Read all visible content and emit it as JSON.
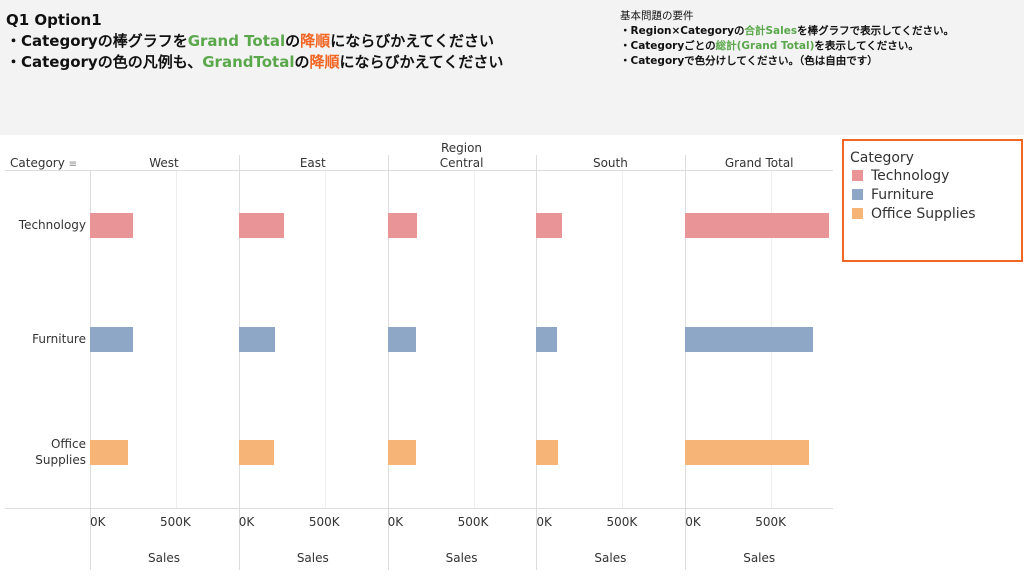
{
  "header": {
    "title": "Q1 Option1",
    "line1": [
      "・Categoryの棒グラフを",
      "Grand Total",
      "の",
      "降順",
      "にならびかえてください"
    ],
    "line2": [
      "・Categoryの色の凡例も、",
      "GrandTotal",
      "の",
      "降順",
      "にならびかえてください"
    ]
  },
  "requirements": {
    "title": "基本問題の要件",
    "r1": [
      "・Region×Categoryの",
      "合計Sales",
      "を棒グラフで表示してください。"
    ],
    "r2": [
      "・Categoryごとの",
      "総計(Grand Total)",
      "を表示してください。"
    ],
    "r3": "・Categoryで色分けしてください。（色は自由です）"
  },
  "colors": {
    "Technology": "#e99497",
    "Furniture": "#8fa7c7",
    "Office Supplies": "#f6b576",
    "accent": "#f26522"
  },
  "legend": {
    "title": "Category",
    "items": [
      "Technology",
      "Furniture",
      "Office Supplies"
    ]
  },
  "chart_data": {
    "type": "bar",
    "orientation": "horizontal",
    "column_header": "Region",
    "row_header": "Category",
    "panes": [
      "West",
      "East",
      "Central",
      "South",
      "Grand Total"
    ],
    "categories": [
      "Technology",
      "Furniture",
      "Office Supplies"
    ],
    "category_labels": [
      [
        "Technology"
      ],
      [
        "Furniture"
      ],
      [
        "Office",
        "Supplies"
      ]
    ],
    "values": {
      "West": [
        251000,
        252000,
        220000
      ],
      "East": [
        264000,
        208000,
        206000
      ],
      "Central": [
        171000,
        164000,
        167000
      ],
      "South": [
        149000,
        118000,
        125000
      ],
      "Grand Total": [
        836000,
        742000,
        719000
      ]
    },
    "xlabel": "Sales",
    "ticks": [
      "0K",
      "500K"
    ],
    "tick_values": [
      0,
      500000
    ],
    "xlim": [
      0,
      860000
    ]
  }
}
